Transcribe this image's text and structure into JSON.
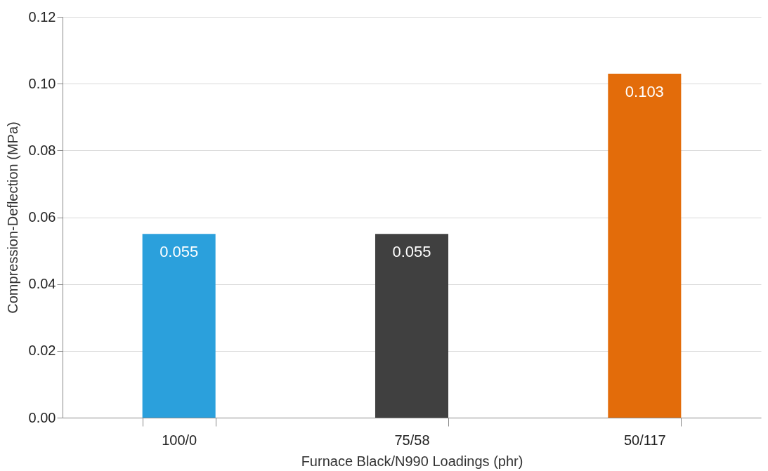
{
  "chart_data": {
    "type": "bar",
    "xlabel": "Furnace Black/N990 Loadings (phr)",
    "ylabel": "Compression-Deflection (MPa)",
    "categories": [
      "100/0",
      "75/58",
      "50/117"
    ],
    "values": [
      0.055,
      0.055,
      0.103
    ],
    "colors": [
      "#2ba0dc",
      "#404040",
      "#e36c0a"
    ],
    "ylim": [
      0,
      0.12
    ],
    "yticks": [
      {
        "value": 0,
        "label": "0.00"
      },
      {
        "value": 0.02,
        "label": "0.02"
      },
      {
        "value": 0.04,
        "label": "0.04"
      },
      {
        "value": 0.06,
        "label": "0.06"
      },
      {
        "value": 0.08,
        "label": "0.08"
      },
      {
        "value": 0.1,
        "label": "0.10"
      },
      {
        "value": 0.12,
        "label": "0.12"
      }
    ],
    "grid": "y",
    "data_labels": true
  }
}
